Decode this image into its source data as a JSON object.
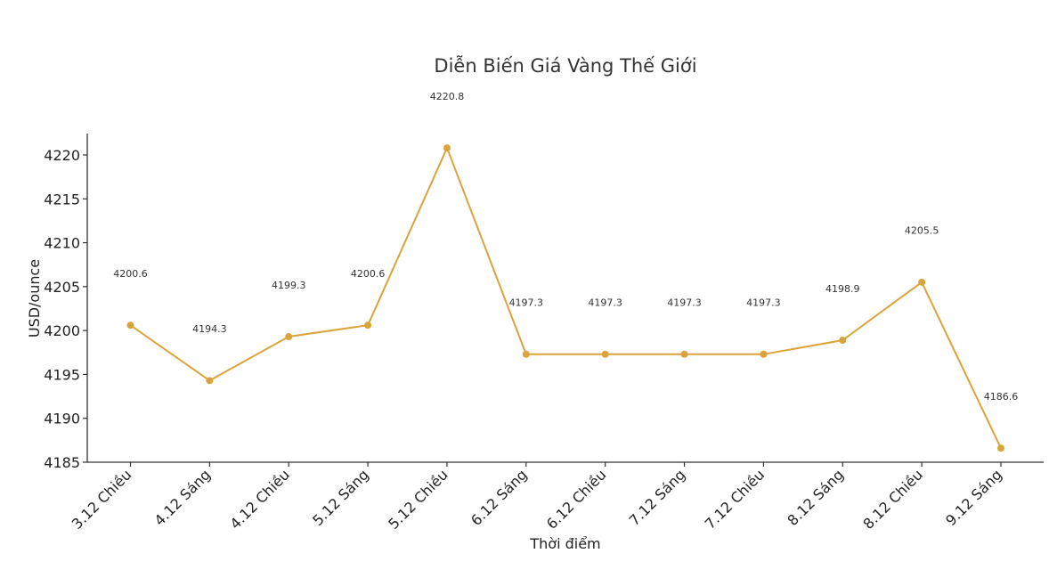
{
  "chart_data": {
    "type": "line",
    "title": "Diễn Biến Giá Vàng Thế Giới",
    "xlabel": "Thời điểm",
    "ylabel": "USD/ounce",
    "categories": [
      "3.12 Chiều",
      "4.12 Sáng",
      "4.12 Chiều",
      "5.12 Sáng",
      "5.12 Chiều",
      "6.12 Sáng",
      "6.12 Chiều",
      "7.12 Sáng",
      "7.12 Chiều",
      "8.12 Sáng",
      "8.12 Chiều",
      "9.12 Sáng"
    ],
    "values": [
      4200.6,
      4194.3,
      4199.3,
      4200.6,
      4220.8,
      4197.3,
      4197.3,
      4197.3,
      4197.3,
      4198.9,
      4205.5,
      4186.6
    ],
    "value_labels": [
      "4200.6",
      "4194.3",
      "4199.3",
      "4200.6",
      "4220.8",
      "4197.3",
      "4197.3",
      "4197.3",
      "4197.3",
      "4198.9",
      "4205.5",
      "4186.6"
    ],
    "yticks": [
      4185,
      4190,
      4195,
      4200,
      4205,
      4210,
      4215,
      4220
    ],
    "ylim": [
      4185,
      4222.4
    ],
    "grid": false,
    "legend": "none",
    "line_color": "#DAA43A"
  }
}
